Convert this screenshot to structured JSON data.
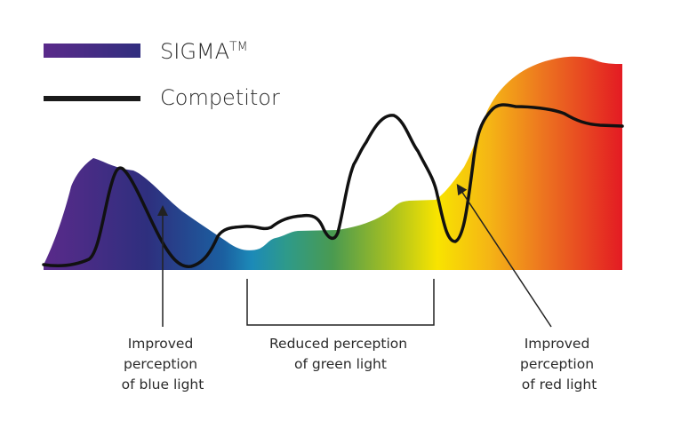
{
  "legend": {
    "items": [
      {
        "label": "SIGMA",
        "superscript": "TM",
        "style": "spectrum-gradient"
      },
      {
        "label": "Competitor",
        "style": "black-line"
      }
    ]
  },
  "annotations": {
    "blue": {
      "line1": "Improved",
      "line2": "perception",
      "line3": "of blue light"
    },
    "green": {
      "line1": "Reduced perception",
      "line2": "of green light"
    },
    "red": {
      "line1": "Improved",
      "line2": "perception",
      "line3": "of red light"
    }
  },
  "colors": {
    "spectrum": [
      "#5a2a8a",
      "#2e2f7e",
      "#1b6aa8",
      "#1c8ab8",
      "#2e9a8a",
      "#4a9a50",
      "#9ab82a",
      "#f5e000",
      "#f5b515",
      "#ec7020",
      "#e31b23"
    ],
    "competitor": "#111111",
    "annotation": "#222222"
  }
}
